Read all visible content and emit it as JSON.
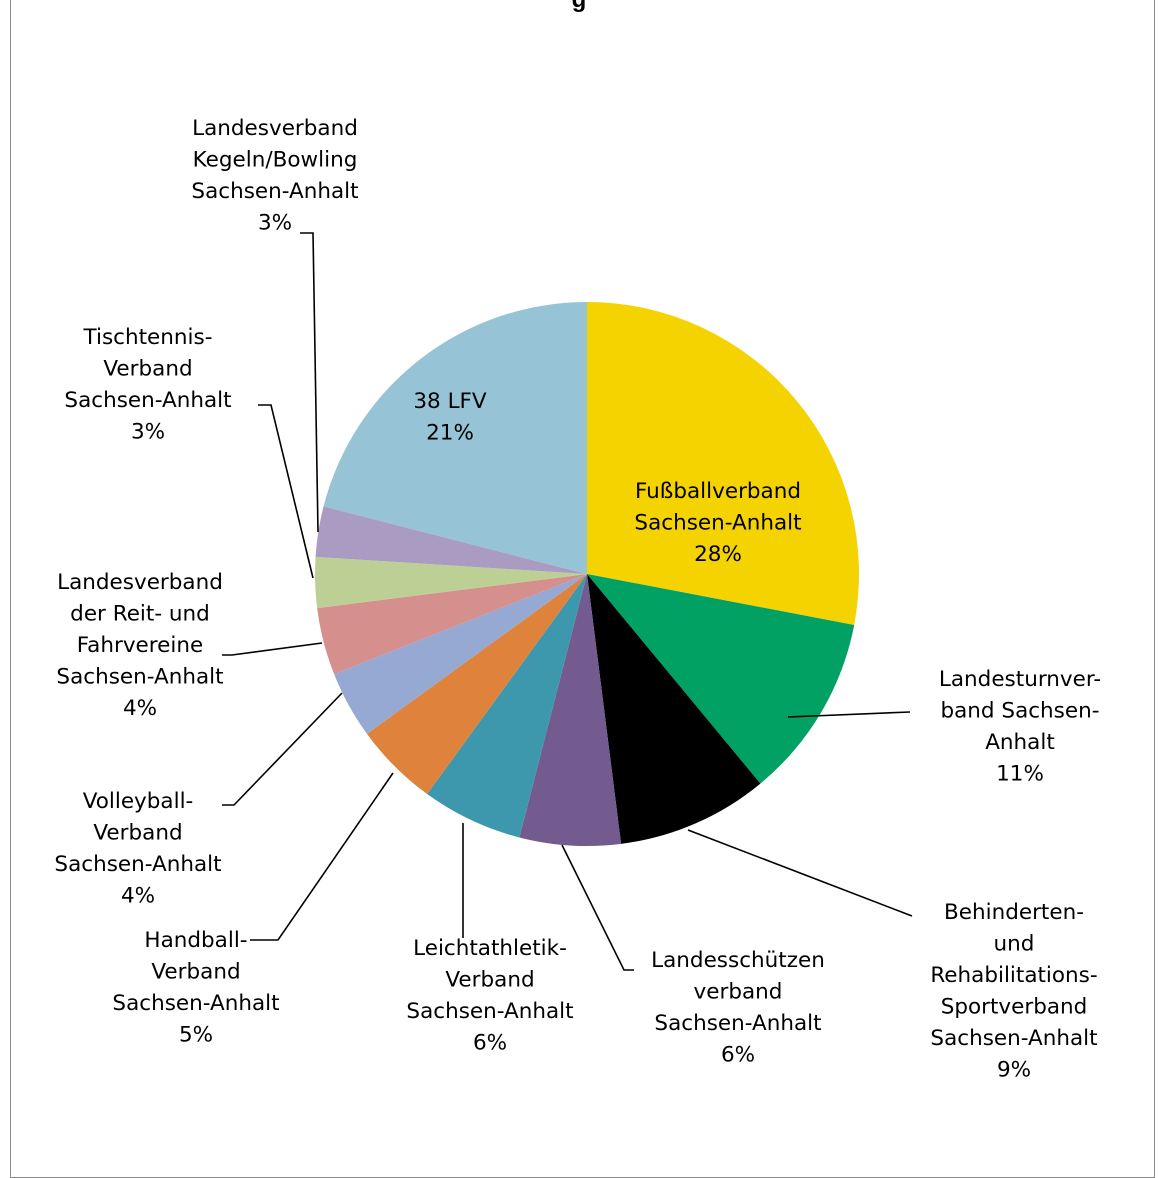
{
  "chart_data": {
    "type": "pie",
    "title": "",
    "title_fragment": "g",
    "colors": {
      "fussball": "#f5d300",
      "turn": "#00a163",
      "behinderten": "#000000",
      "schuetzen": "#735a8f",
      "leichtathletik": "#3e98ad",
      "handball": "#df833c",
      "volleyball": "#96a9d3",
      "reit": "#d58f8d",
      "tischtennis": "#bcd096",
      "kegeln": "#a99bc1",
      "lfv": "#96c3d6"
    },
    "slices": [
      {
        "id": "fussball",
        "lines": [
          "Fußballverband",
          "Sachsen-Anhalt"
        ],
        "value": 28,
        "label": "28%"
      },
      {
        "id": "turn",
        "lines": [
          "Landesturnver-",
          "band Sachsen-",
          "Anhalt"
        ],
        "value": 11,
        "label": "11%"
      },
      {
        "id": "behinderten",
        "lines": [
          "Behinderten-",
          "und",
          "Rehabilitations-",
          "Sportverband",
          "Sachsen-Anhalt"
        ],
        "value": 9,
        "label": "9%"
      },
      {
        "id": "schuetzen",
        "lines": [
          "Landesschützen",
          "verband",
          "Sachsen-Anhalt"
        ],
        "value": 6,
        "label": "6%"
      },
      {
        "id": "leichtathletik",
        "lines": [
          "Leichtathletik-",
          "Verband",
          "Sachsen-Anhalt"
        ],
        "value": 6,
        "label": "6%"
      },
      {
        "id": "handball",
        "lines": [
          "Handball-",
          "Verband",
          "Sachsen-Anhalt"
        ],
        "value": 5,
        "label": "5%"
      },
      {
        "id": "volleyball",
        "lines": [
          "Volleyball-",
          "Verband",
          "Sachsen-Anhalt"
        ],
        "value": 4,
        "label": "4%"
      },
      {
        "id": "reit",
        "lines": [
          "Landesverband",
          "der Reit- und",
          "Fahrvereine",
          "Sachsen-Anhalt"
        ],
        "value": 4,
        "label": "4%"
      },
      {
        "id": "tischtennis",
        "lines": [
          "Tischtennis-",
          "Verband",
          "Sachsen-Anhalt"
        ],
        "value": 3,
        "label": "3%"
      },
      {
        "id": "kegeln",
        "lines": [
          "Landesverband",
          "Kegeln/Bowling",
          "Sachsen-Anhalt"
        ],
        "value": 3,
        "label": "3%"
      },
      {
        "id": "lfv",
        "lines": [
          "38 LFV"
        ],
        "value": 21,
        "label": "21%"
      }
    ]
  }
}
